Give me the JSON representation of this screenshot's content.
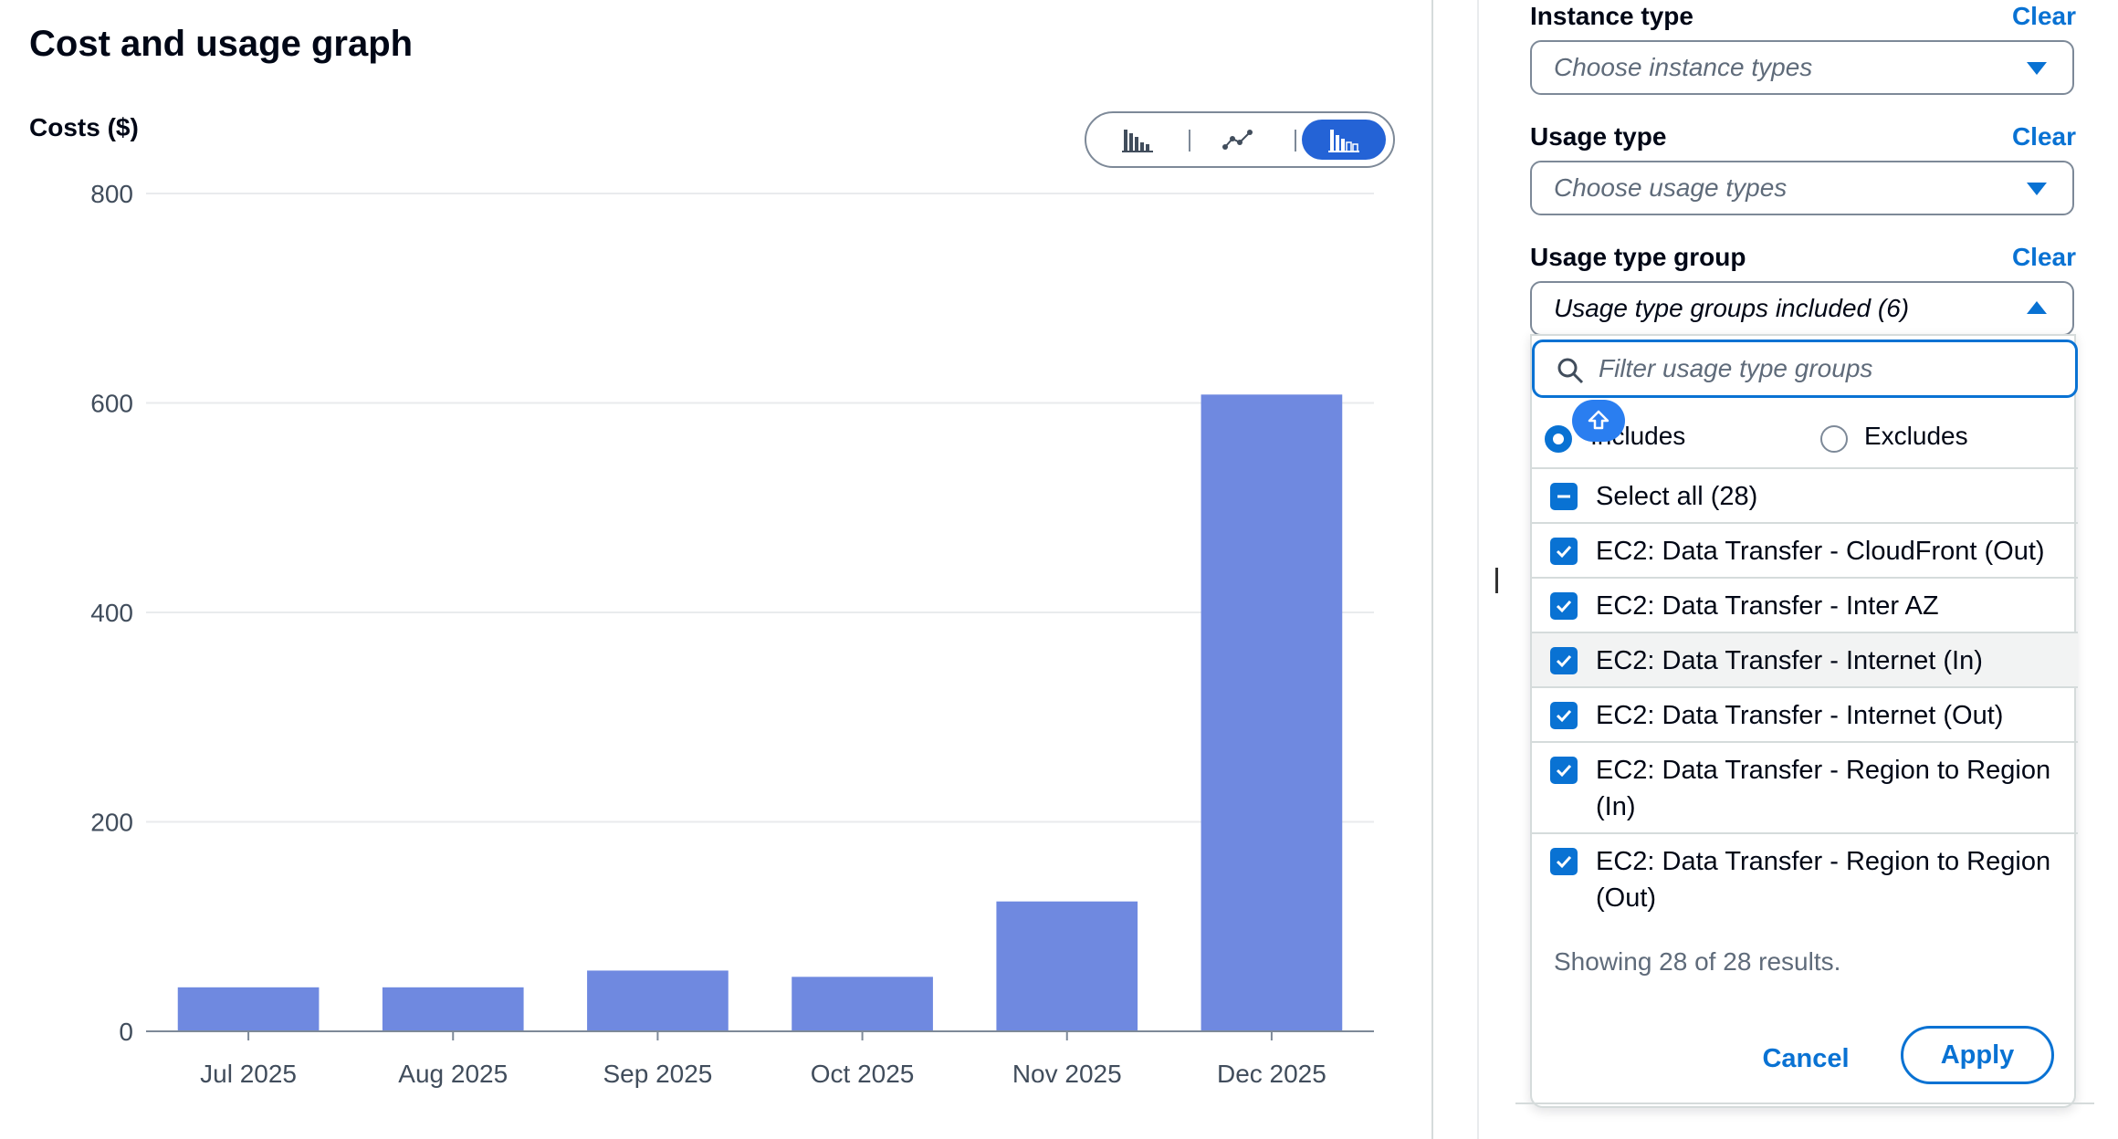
{
  "graph": {
    "title": "Cost and usage graph",
    "y_axis_title": "Costs ($)",
    "toggle": {
      "buttons": [
        {
          "icon": "bar-chart-icon",
          "active": false
        },
        {
          "icon": "line-chart-icon",
          "active": false
        },
        {
          "icon": "stacked-bar-chart-icon",
          "active": true
        }
      ]
    }
  },
  "chart_data": {
    "type": "bar",
    "categories": [
      "Jul 2025",
      "Aug 2025",
      "Sep 2025",
      "Oct 2025",
      "Nov 2025",
      "Dec 2025"
    ],
    "values": [
      42,
      42,
      58,
      52,
      124,
      608
    ],
    "ylabel": "Costs ($)",
    "ylim": [
      0,
      800
    ],
    "yticks": [
      0,
      200,
      400,
      600,
      800
    ],
    "grid": true,
    "bar_color": "#6f89e0"
  },
  "filters": {
    "instance_type": {
      "label": "Instance type",
      "clear": "Clear",
      "placeholder": "Choose instance types"
    },
    "usage_type": {
      "label": "Usage type",
      "clear": "Clear",
      "placeholder": "Choose usage types"
    },
    "usage_type_group": {
      "label": "Usage type group",
      "clear": "Clear",
      "value": "Usage type groups included (6)",
      "filter_placeholder": "Filter usage type groups",
      "mode": {
        "includes": "Includes",
        "excludes": "Excludes",
        "selected": "includes"
      },
      "select_all": "Select all (28)",
      "options": [
        "EC2: Data Transfer - CloudFront (Out)",
        "EC2: Data Transfer - Inter AZ",
        "EC2: Data Transfer - Internet (In)",
        "EC2: Data Transfer - Internet (Out)",
        "EC2: Data Transfer - Region to Region (In)",
        "EC2: Data Transfer - Region to Region (Out)"
      ],
      "showing": "Showing 28 of 28 results.",
      "cancel": "Cancel",
      "apply": "Apply"
    }
  },
  "colors": {
    "accent": "#0972d3",
    "bar": "#6f89e0",
    "toggle_active": "#2463d6"
  }
}
